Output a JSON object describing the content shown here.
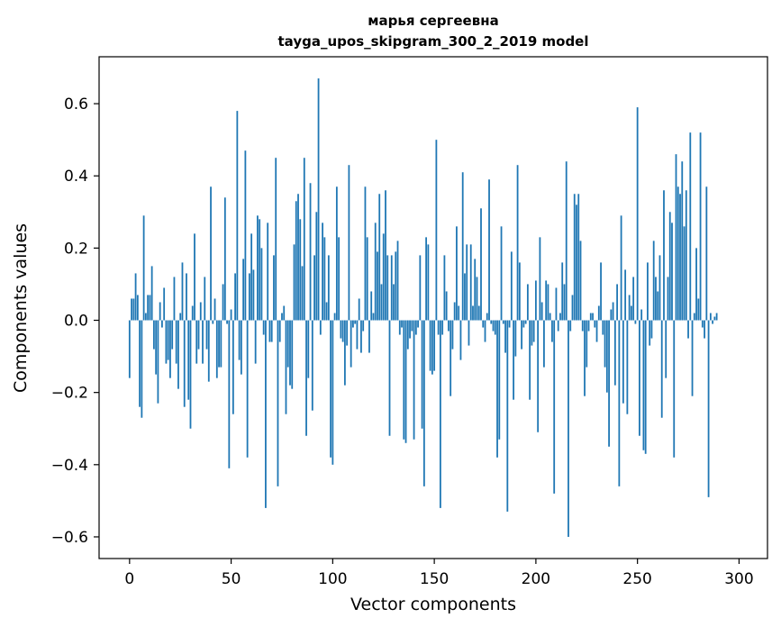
{
  "chart_data": {
    "type": "bar",
    "title_line1": "марья сергеевна",
    "title_line2": "tayga_upos_skipgram_300_2_2019 model",
    "xlabel": "Vector components",
    "ylabel": "Components values",
    "xlim": [
      -15,
      314
    ],
    "ylim": [
      -0.66,
      0.73
    ],
    "xticks": [
      0,
      50,
      100,
      150,
      200,
      250,
      300
    ],
    "xtick_labels": [
      "0",
      "50",
      "100",
      "150",
      "200",
      "250",
      "300"
    ],
    "yticks": [
      -0.6,
      -0.4,
      -0.2,
      0.0,
      0.2,
      0.4,
      0.6
    ],
    "ytick_labels": [
      "−0.6",
      "−0.4",
      "−0.2",
      "0.0",
      "0.2",
      "0.4",
      "0.6"
    ],
    "bar_color": "#1f77b4",
    "values": [
      -0.16,
      0.06,
      0.06,
      0.13,
      0.07,
      -0.24,
      -0.27,
      0.29,
      0.02,
      0.07,
      0.07,
      0.15,
      -0.08,
      -0.15,
      -0.23,
      0.05,
      -0.02,
      0.09,
      -0.12,
      -0.11,
      -0.16,
      -0.08,
      0.12,
      -0.12,
      -0.19,
      0.02,
      0.16,
      -0.24,
      0.13,
      -0.22,
      -0.3,
      0.04,
      0.24,
      -0.12,
      -0.08,
      0.05,
      -0.12,
      0.12,
      -0.08,
      -0.17,
      0.37,
      -0.01,
      0.06,
      -0.16,
      -0.13,
      -0.13,
      0.1,
      0.34,
      -0.01,
      -0.41,
      0.03,
      -0.26,
      0.13,
      0.58,
      -0.11,
      -0.15,
      0.17,
      0.47,
      -0.38,
      0.13,
      0.24,
      0.14,
      -0.12,
      0.29,
      0.28,
      0.2,
      -0.04,
      -0.52,
      0.27,
      -0.06,
      -0.06,
      0.18,
      0.45,
      -0.46,
      -0.06,
      0.02,
      0.04,
      -0.26,
      -0.13,
      -0.18,
      -0.19,
      0.21,
      0.33,
      0.35,
      0.28,
      0.15,
      0.45,
      -0.32,
      -0.16,
      0.38,
      -0.25,
      0.18,
      0.3,
      0.67,
      -0.04,
      0.27,
      0.23,
      0.05,
      0.18,
      -0.38,
      -0.4,
      0.02,
      0.37,
      0.23,
      -0.05,
      -0.06,
      -0.18,
      -0.07,
      0.43,
      -0.13,
      -0.02,
      -0.01,
      -0.08,
      0.06,
      -0.09,
      -0.03,
      0.37,
      0.23,
      -0.09,
      0.08,
      0.02,
      0.27,
      0.19,
      0.35,
      0.1,
      0.24,
      0.36,
      0.18,
      -0.32,
      0.18,
      0.1,
      0.19,
      0.22,
      -0.04,
      -0.02,
      -0.33,
      -0.34,
      -0.08,
      -0.05,
      -0.03,
      -0.33,
      -0.04,
      -0.02,
      0.18,
      -0.3,
      -0.46,
      0.23,
      0.21,
      -0.14,
      -0.15,
      -0.14,
      0.5,
      -0.04,
      -0.52,
      -0.04,
      0.18,
      0.08,
      -0.03,
      -0.21,
      -0.08,
      0.05,
      0.26,
      0.04,
      -0.11,
      0.41,
      0.13,
      0.21,
      -0.07,
      0.21,
      0.04,
      0.17,
      0.12,
      0.04,
      0.31,
      -0.02,
      -0.06,
      0.02,
      0.39,
      -0.01,
      -0.03,
      -0.04,
      -0.38,
      -0.33,
      0.26,
      -0.01,
      -0.09,
      -0.53,
      -0.02,
      0.19,
      -0.22,
      -0.1,
      0.43,
      0.16,
      -0.08,
      -0.02,
      -0.01,
      0.1,
      -0.22,
      -0.07,
      -0.06,
      0.11,
      -0.31,
      0.23,
      0.05,
      -0.13,
      0.11,
      0.1,
      0.02,
      -0.06,
      -0.48,
      0.09,
      -0.03,
      0.02,
      0.16,
      0.1,
      0.44,
      -0.6,
      -0.03,
      0.07,
      0.35,
      0.32,
      0.35,
      0.22,
      -0.03,
      -0.21,
      -0.13,
      -0.03,
      0.02,
      0.02,
      -0.02,
      -0.06,
      0.04,
      0.16,
      -0.04,
      -0.13,
      -0.2,
      -0.35,
      0.03,
      0.05,
      -0.18,
      0.1,
      -0.46,
      0.29,
      -0.23,
      0.14,
      -0.26,
      0.07,
      0.04,
      0.12,
      -0.01,
      0.59,
      -0.32,
      0.03,
      -0.36,
      -0.37,
      0.16,
      -0.07,
      -0.05,
      0.22,
      0.12,
      0.08,
      0.18,
      -0.27,
      0.36,
      -0.16,
      0.12,
      0.3,
      0.27,
      -0.38,
      0.46,
      0.37,
      0.35,
      0.44,
      0.26,
      0.36,
      -0.05,
      0.52,
      -0.21,
      0.02,
      0.2,
      0.06,
      0.52,
      -0.02,
      -0.05,
      0.37,
      -0.49,
      0.02,
      -0.01,
      0.01,
      0.02
    ]
  }
}
